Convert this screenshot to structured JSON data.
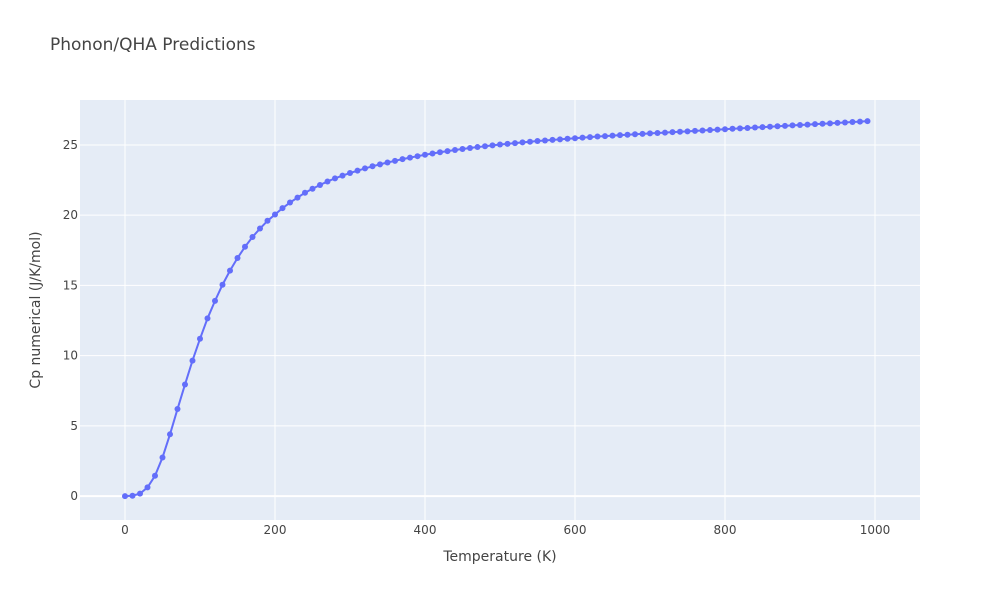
{
  "chart_data": {
    "type": "line",
    "title": "Phonon/QHA Predictions",
    "xlabel": "Temperature (K)",
    "ylabel": "Cp numerical (J/K/mol)",
    "xlim": [
      -60,
      1060
    ],
    "ylim": [
      -1.7,
      28.2
    ],
    "x_ticks": [
      0,
      200,
      400,
      600,
      800,
      1000
    ],
    "y_ticks": [
      0,
      5,
      10,
      15,
      20,
      25
    ],
    "grid": true,
    "legend": "none",
    "colors": {
      "plot_bg": "#e5ecf6",
      "series": "#636efa",
      "grid": "#ffffff"
    },
    "series": [
      {
        "mode": "lines+markers",
        "x": [
          0,
          10,
          20,
          30,
          40,
          50,
          60,
          70,
          80,
          90,
          100,
          110,
          120,
          130,
          140,
          150,
          160,
          170,
          180,
          190,
          200,
          210,
          220,
          230,
          240,
          250,
          260,
          270,
          280,
          290,
          300,
          310,
          320,
          330,
          340,
          350,
          360,
          370,
          380,
          390,
          400,
          410,
          420,
          430,
          440,
          450,
          460,
          470,
          480,
          490,
          500,
          510,
          520,
          530,
          540,
          550,
          560,
          570,
          580,
          590,
          600,
          610,
          620,
          630,
          640,
          650,
          660,
          670,
          680,
          690,
          700,
          710,
          720,
          730,
          740,
          750,
          760,
          770,
          780,
          790,
          800,
          810,
          820,
          830,
          840,
          850,
          860,
          870,
          880,
          890,
          900,
          910,
          920,
          930,
          940,
          950,
          960,
          970,
          980,
          990
        ],
        "y": [
          0.0,
          0.03,
          0.18,
          0.62,
          1.45,
          2.75,
          4.4,
          6.2,
          7.95,
          9.65,
          11.2,
          12.65,
          13.9,
          15.05,
          16.05,
          16.95,
          17.75,
          18.45,
          19.05,
          19.6,
          20.05,
          20.5,
          20.9,
          21.25,
          21.6,
          21.88,
          22.15,
          22.4,
          22.62,
          22.82,
          23.0,
          23.17,
          23.33,
          23.48,
          23.62,
          23.75,
          23.87,
          23.99,
          24.1,
          24.2,
          24.3,
          24.39,
          24.48,
          24.56,
          24.64,
          24.71,
          24.78,
          24.85,
          24.91,
          24.97,
          25.03,
          25.08,
          25.13,
          25.18,
          25.23,
          25.28,
          25.32,
          25.36,
          25.4,
          25.44,
          25.48,
          25.52,
          25.56,
          25.6,
          25.63,
          25.66,
          25.7,
          25.73,
          25.76,
          25.79,
          25.82,
          25.85,
          25.88,
          25.91,
          25.94,
          25.97,
          26.0,
          26.03,
          26.06,
          26.09,
          26.12,
          26.15,
          26.18,
          26.21,
          26.24,
          26.27,
          26.3,
          26.33,
          26.36,
          26.39,
          26.42,
          26.45,
          26.48,
          26.51,
          26.54,
          26.57,
          26.6,
          26.63,
          26.66,
          26.7
        ]
      }
    ]
  }
}
